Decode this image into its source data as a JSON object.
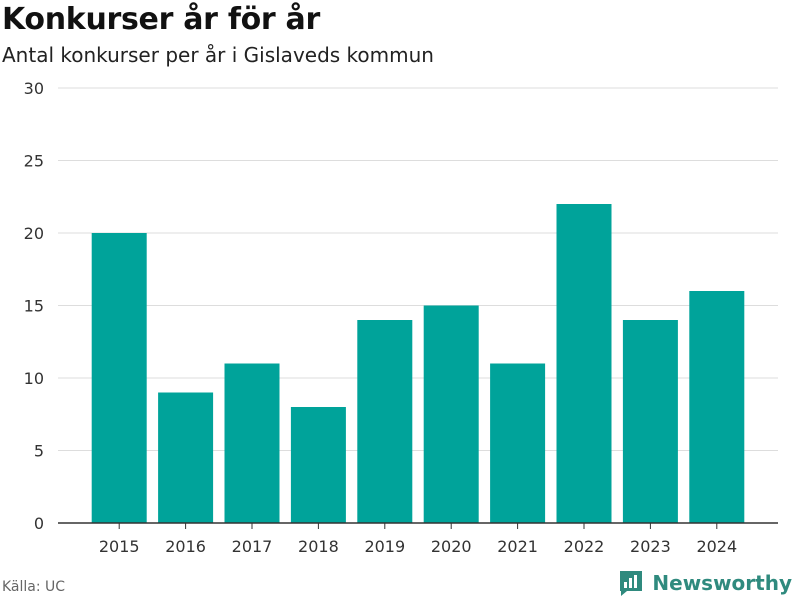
{
  "title": "Konkurser år för år",
  "subtitle": "Antal konkurser per år i Gislaveds kommun",
  "source": "Källa: UC",
  "brand": {
    "name": "Newsworthy",
    "icon": "newsworthy-logo-icon",
    "color": "#2f8a7e"
  },
  "colors": {
    "bar": "#00a39a",
    "grid": "#dddddd",
    "axis": "#333333"
  },
  "chart_data": {
    "type": "bar",
    "categories": [
      "2015",
      "2016",
      "2017",
      "2018",
      "2019",
      "2020",
      "2021",
      "2022",
      "2023",
      "2024"
    ],
    "values": [
      20,
      9,
      11,
      8,
      14,
      15,
      11,
      22,
      14,
      16
    ],
    "title": "Konkurser år för år",
    "subtitle": "Antal konkurser per år i Gislaveds kommun",
    "xlabel": "",
    "ylabel": "",
    "ylim": [
      0,
      30
    ],
    "yticks": [
      0,
      5,
      10,
      15,
      20,
      25,
      30
    ],
    "grid": true,
    "legend": "none"
  }
}
